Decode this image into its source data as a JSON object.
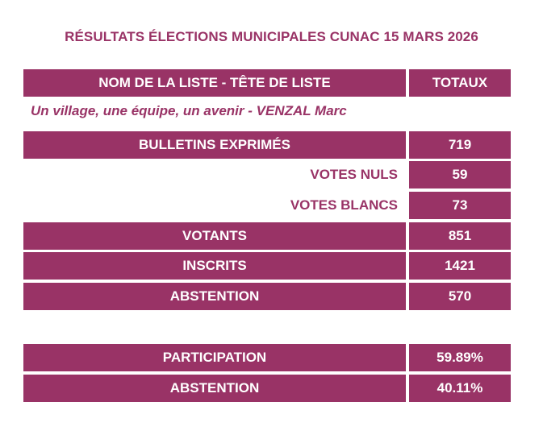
{
  "title": "RÉSULTATS ÉLECTIONS MUNICIPALES CUNAC 15 MARS 2026",
  "header": {
    "name_col": "NOM DE LA LISTE - TÊTE DE LISTE",
    "total_col": "TOTAUX"
  },
  "list_name": "Un village, une équipe, un avenir - VENZAL Marc",
  "rows": {
    "exprimes": {
      "label": "BULLETINS EXPRIMÉS",
      "value": "719"
    },
    "nuls": {
      "label": "VOTES NULS",
      "value": "59"
    },
    "blancs": {
      "label": "VOTES BLANCS",
      "value": "73"
    },
    "votants": {
      "label": "VOTANTS",
      "value": "851"
    },
    "inscrits": {
      "label": "INSCRITS",
      "value": "1421"
    },
    "abstention": {
      "label": "ABSTENTION",
      "value": "570"
    }
  },
  "summary": {
    "participation": {
      "label": "PARTICIPATION",
      "value": "59.89%"
    },
    "abstention": {
      "label": "ABSTENTION",
      "value": "40.11%"
    }
  },
  "colors": {
    "accent": "#993366",
    "text_on_accent": "#ffffff"
  }
}
